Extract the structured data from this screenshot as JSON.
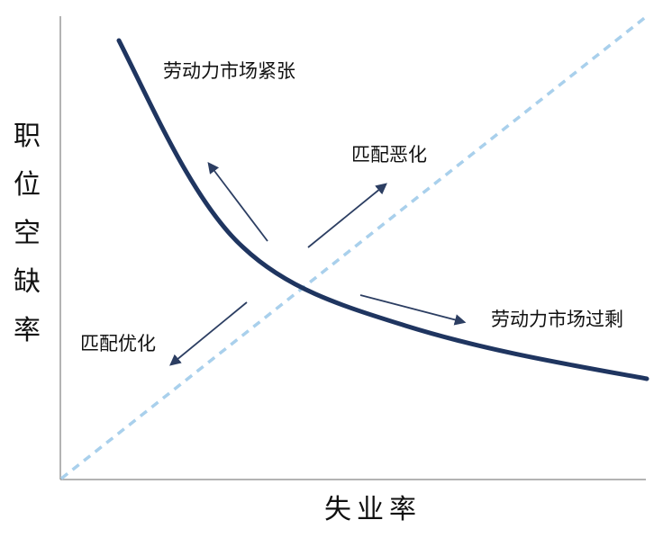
{
  "axes": {
    "y_label_chars": [
      "职",
      "位",
      "空",
      "缺",
      "率"
    ],
    "x_label": "失业率"
  },
  "annotations": {
    "tight": "劳动力市场紧张",
    "worsen": "匹配恶化",
    "surplus": "劳动力市场过剩",
    "improve": "匹配优化"
  },
  "colors": {
    "curve": "#1f3560",
    "diagonal": "#a9d0ec",
    "arrow": "#2c3e62",
    "axis": "#9a9a9a",
    "text": "#111111"
  }
}
